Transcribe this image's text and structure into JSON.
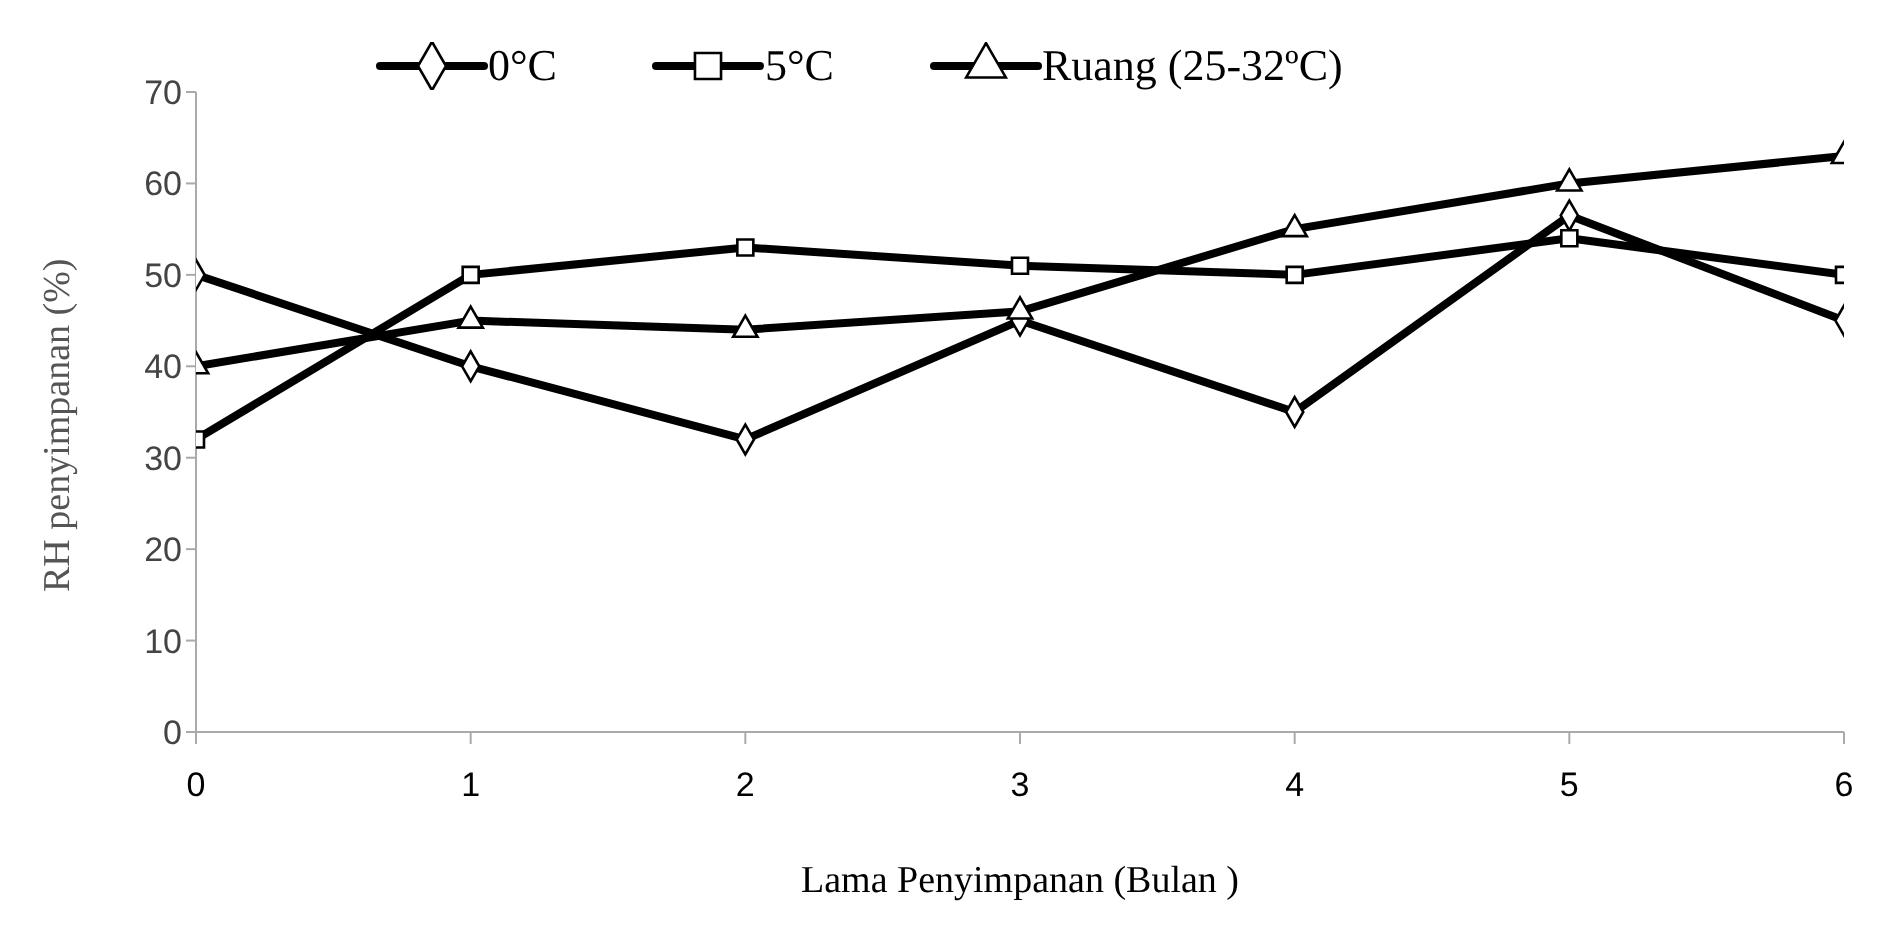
{
  "chart_data": {
    "type": "line",
    "xlabel": "Lama Penyimpanan (Bulan )",
    "ylabel": "RH penyimpanan (%)",
    "x": [
      0,
      1,
      2,
      3,
      4,
      5,
      6
    ],
    "xlim": [
      0,
      6
    ],
    "xticks": [
      0,
      1,
      2,
      3,
      4,
      5,
      6
    ],
    "ylim": [
      0,
      70
    ],
    "yticks": [
      0,
      10,
      20,
      30,
      40,
      50,
      60,
      70
    ],
    "grid": false,
    "legend": "top",
    "series": [
      {
        "name": "0°C",
        "color": "#000000",
        "marker": "diamond",
        "values": [
          50,
          40,
          32,
          45,
          35,
          56.5,
          45
        ]
      },
      {
        "name": "5°C",
        "color": "#000000",
        "marker": "square",
        "values": [
          32,
          50,
          53,
          51,
          50,
          54,
          50
        ]
      },
      {
        "name": "Ruang (25-32ºC)",
        "color": "#000000",
        "marker": "triangle",
        "values": [
          40,
          45,
          44,
          46,
          55,
          60,
          63
        ]
      }
    ]
  }
}
